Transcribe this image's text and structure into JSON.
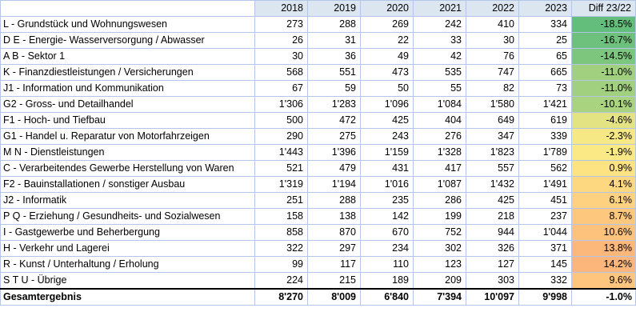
{
  "table": {
    "headers": [
      "",
      "2018",
      "2019",
      "2020",
      "2021",
      "2022",
      "2023",
      "Diff 23/22"
    ],
    "rows": [
      {
        "label": "L - Grundstück und Wohnungswesen",
        "values": [
          "273",
          "288",
          "269",
          "242",
          "410",
          "334"
        ],
        "diff": "-18.5%",
        "diff_color": "#63be7b"
      },
      {
        "label": "D E - Energie- Wasserversorgung / Abwasser",
        "values": [
          "26",
          "31",
          "22",
          "33",
          "30",
          "25"
        ],
        "diff": "-16.7%",
        "diff_color": "#6dc17c"
      },
      {
        "label": "A B - Sektor 1",
        "values": [
          "30",
          "36",
          "49",
          "42",
          "76",
          "65"
        ],
        "diff": "-14.5%",
        "diff_color": "#7cc67d"
      },
      {
        "label": "K - Finanzdiestleistungen / Versicherungen",
        "values": [
          "568",
          "551",
          "473",
          "535",
          "747",
          "665"
        ],
        "diff": "-11.0%",
        "diff_color": "#a1d07f"
      },
      {
        "label": "J1 - Information und Kommunikation",
        "values": [
          "67",
          "59",
          "50",
          "55",
          "82",
          "73"
        ],
        "diff": "-11.0%",
        "diff_color": "#a1d07f"
      },
      {
        "label": "G2 - Gross- und Detailhandel",
        "values": [
          "1'306",
          "1'283",
          "1'096",
          "1'084",
          "1'580",
          "1'421"
        ],
        "diff": "-10.1%",
        "diff_color": "#aad380"
      },
      {
        "label": "F1 - Hoch- und Tiefbau",
        "values": [
          "500",
          "472",
          "425",
          "404",
          "649",
          "619"
        ],
        "diff": "-4.6%",
        "diff_color": "#e3e383"
      },
      {
        "label": "G1 - Handel u. Reparatur von Motorfahrzeigen",
        "values": [
          "290",
          "275",
          "243",
          "276",
          "347",
          "339"
        ],
        "diff": "-2.3%",
        "diff_color": "#f6e884"
      },
      {
        "label": "M N - Dienstleistungen",
        "values": [
          "1'443",
          "1'396",
          "1'159",
          "1'328",
          "1'823",
          "1'789"
        ],
        "diff": "-1.9%",
        "diff_color": "#fae984"
      },
      {
        "label": "C - Verarbeitendes Gewerbe Herstellung von Waren",
        "values": [
          "521",
          "479",
          "431",
          "417",
          "557",
          "562"
        ],
        "diff": "0.9%",
        "diff_color": "#fee382"
      },
      {
        "label": "F2 - Bauinstallationen / sonstiger Ausbau",
        "values": [
          "1'319",
          "1'194",
          "1'016",
          "1'087",
          "1'432",
          "1'491"
        ],
        "diff": "4.1%",
        "diff_color": "#fed880"
      },
      {
        "label": "J2 - Informatik",
        "values": [
          "251",
          "288",
          "235",
          "286",
          "425",
          "451"
        ],
        "diff": "6.1%",
        "diff_color": "#fdd17f"
      },
      {
        "label": "P Q - Erziehung / Gesundheits- und Sozialwesen",
        "values": [
          "158",
          "138",
          "142",
          "199",
          "218",
          "237"
        ],
        "diff": "8.7%",
        "diff_color": "#fdc87d"
      },
      {
        "label": "I - Gastgewerbe und Beherbergung",
        "values": [
          "858",
          "870",
          "670",
          "752",
          "944",
          "1'044"
        ],
        "diff": "10.6%",
        "diff_color": "#fdc27c"
      },
      {
        "label": "H - Verkehr und Lagerei",
        "values": [
          "322",
          "297",
          "234",
          "302",
          "326",
          "371"
        ],
        "diff": "13.8%",
        "diff_color": "#fcb77a"
      },
      {
        "label": "R - Kunst / Unterhaltung / Erholung",
        "values": [
          "99",
          "117",
          "110",
          "123",
          "127",
          "145"
        ],
        "diff": "14.2%",
        "diff_color": "#fcb57a"
      },
      {
        "label": "S T U - Übrige",
        "values": [
          "224",
          "215",
          "189",
          "209",
          "303",
          "332"
        ],
        "diff": "9.6%",
        "diff_color": "#fdc57d"
      }
    ],
    "total": {
      "label": "Gesamtergebnis",
      "values": [
        "8'270",
        "8'009",
        "6'840",
        "7'394",
        "10'097",
        "9'998"
      ],
      "diff": "-1.0%"
    }
  }
}
